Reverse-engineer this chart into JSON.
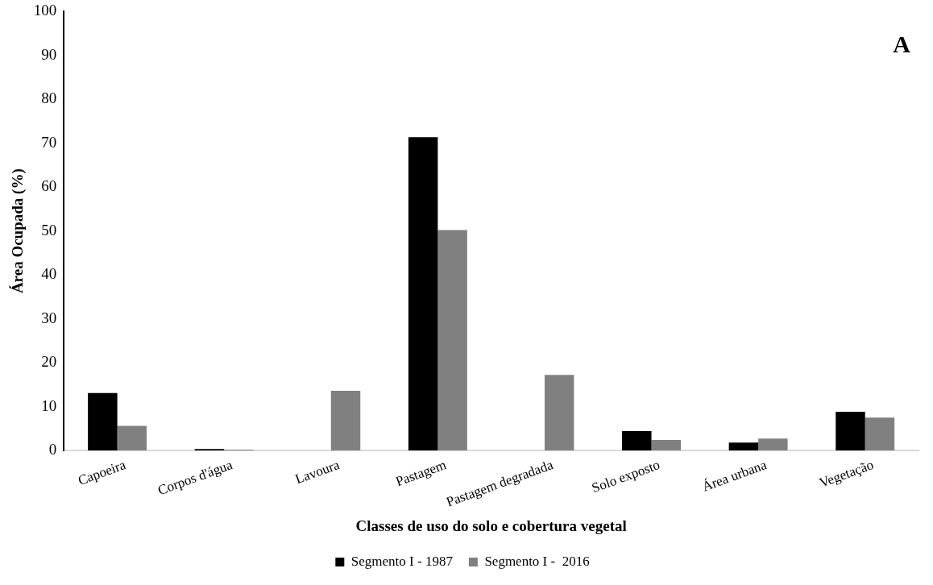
{
  "chart_data": {
    "type": "bar",
    "xlabel": "Classes de uso do solo e cobertura vegetal",
    "ylabel": "Área Ocupada (%)",
    "categories": [
      "Capoeira",
      "Corpos d'água",
      "Lavoura",
      "Pastagem",
      "Pastagem degradada",
      "Solo exposto",
      "Área urbana",
      "Vegetação"
    ],
    "series": [
      {
        "name": "Segmento I - 1987",
        "color": "#000000",
        "values": [
          13.1,
          0.3,
          0,
          71.4,
          0,
          4.4,
          1.8,
          8.8
        ]
      },
      {
        "name": "Segmento I -  2016",
        "color": "#808080",
        "values": [
          5.6,
          0.2,
          13.6,
          50.2,
          17.2,
          2.4,
          2.7,
          7.5
        ]
      }
    ],
    "ylim": [
      0,
      100
    ],
    "yticks": [
      0,
      10,
      20,
      30,
      40,
      50,
      60,
      70,
      80,
      90,
      100
    ],
    "grid": false,
    "legend": "bottom",
    "annotations": [
      "A"
    ]
  }
}
